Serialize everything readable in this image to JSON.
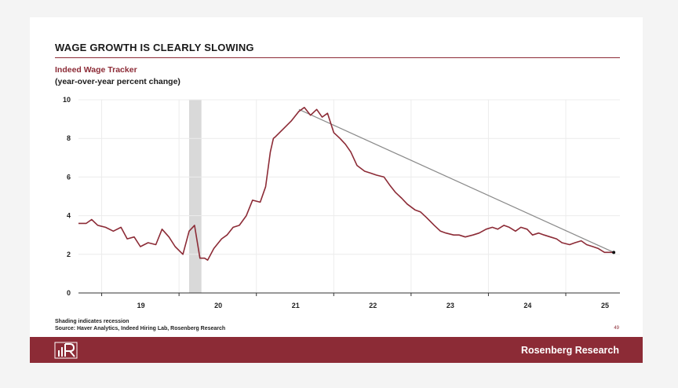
{
  "header": {
    "title": "WAGE GROWTH IS CLEARLY SLOWING",
    "subtitle": "Indeed Wage Tracker",
    "subtitle2": "(year-over-year percent change)"
  },
  "notes": {
    "shading": "Shading indicates recession",
    "source": "Source: Haver Analytics, Indeed Hiring Lab, Rosenberg Research"
  },
  "page_number": "49",
  "footer": {
    "brand": "Rosenberg Research",
    "logo_text": "R"
  },
  "colors": {
    "accent": "#8c2b36",
    "trend": "#8a8a8a",
    "recession": "#d9d9d9",
    "grid": "#ececec"
  },
  "chart_data": {
    "type": "line",
    "title": "Indeed Wage Tracker",
    "ylabel": "(year-over-year percent change)",
    "xlabel": "",
    "ylim": [
      0,
      10
    ],
    "xlim": [
      2018.7,
      2025.7
    ],
    "yticks": [
      0,
      2,
      4,
      6,
      8,
      10
    ],
    "xticks": [
      {
        "value": 2019.0,
        "label": "19"
      },
      {
        "value": 2020.0,
        "label": "20"
      },
      {
        "value": 2021.0,
        "label": "21"
      },
      {
        "value": 2022.0,
        "label": "22"
      },
      {
        "value": 2023.0,
        "label": "23"
      },
      {
        "value": 2024.0,
        "label": "24"
      },
      {
        "value": 2025.0,
        "label": "25"
      }
    ],
    "grid": true,
    "recession": [
      2020.13,
      2020.29
    ],
    "series": [
      {
        "x": [
          2018.7,
          2018.8,
          2018.87,
          2018.95,
          2019.05,
          2019.15,
          2019.25,
          2019.33,
          2019.42,
          2019.5,
          2019.6,
          2019.7,
          2019.78,
          2019.87,
          2019.95,
          2020.05,
          2020.13,
          2020.2,
          2020.27,
          2020.33,
          2020.37,
          2020.45,
          2020.55,
          2020.62,
          2020.7,
          2020.78,
          2020.87,
          2020.95,
          2021.05,
          2021.12,
          2021.18,
          2021.22,
          2021.25,
          2021.35,
          2021.45,
          2021.55,
          2021.62,
          2021.7,
          2021.78,
          2021.85,
          2021.92,
          2022.0,
          2022.08,
          2022.15,
          2022.22,
          2022.3,
          2022.4,
          2022.48,
          2022.55,
          2022.65,
          2022.72,
          2022.8,
          2022.88,
          2022.95,
          2023.05,
          2023.12,
          2023.2,
          2023.3,
          2023.38,
          2023.45,
          2023.55,
          2023.62,
          2023.7,
          2023.8,
          2023.88,
          2023.97,
          2024.05,
          2024.12,
          2024.2,
          2024.27,
          2024.35,
          2024.42,
          2024.5,
          2024.57,
          2024.65,
          2024.72,
          2024.8,
          2024.88,
          2024.95,
          2025.05,
          2025.12,
          2025.2,
          2025.27,
          2025.35,
          2025.42,
          2025.5,
          2025.58,
          2025.62
        ],
        "values": [
          3.6,
          3.6,
          3.8,
          3.5,
          3.4,
          3.2,
          3.4,
          2.8,
          2.9,
          2.4,
          2.6,
          2.5,
          3.3,
          2.9,
          2.4,
          2.0,
          3.2,
          3.5,
          1.8,
          1.8,
          1.7,
          2.3,
          2.8,
          3.0,
          3.4,
          3.5,
          4.0,
          4.8,
          4.7,
          5.5,
          7.3,
          8.0,
          8.1,
          8.5,
          8.9,
          9.4,
          9.6,
          9.2,
          9.5,
          9.1,
          9.3,
          8.3,
          8.0,
          7.7,
          7.3,
          6.6,
          6.3,
          6.2,
          6.1,
          6.0,
          5.6,
          5.2,
          4.9,
          4.6,
          4.3,
          4.2,
          3.9,
          3.5,
          3.2,
          3.1,
          3.0,
          3.0,
          2.9,
          3.0,
          3.1,
          3.3,
          3.4,
          3.3,
          3.5,
          3.4,
          3.2,
          3.4,
          3.3,
          3.0,
          3.1,
          3.0,
          2.9,
          2.8,
          2.6,
          2.5,
          2.6,
          2.7,
          2.5,
          2.4,
          2.3,
          2.1,
          2.1,
          2.1
        ]
      }
    ],
    "trendline": {
      "x": [
        2021.55,
        2025.62
      ],
      "values": [
        9.5,
        2.1
      ]
    }
  }
}
